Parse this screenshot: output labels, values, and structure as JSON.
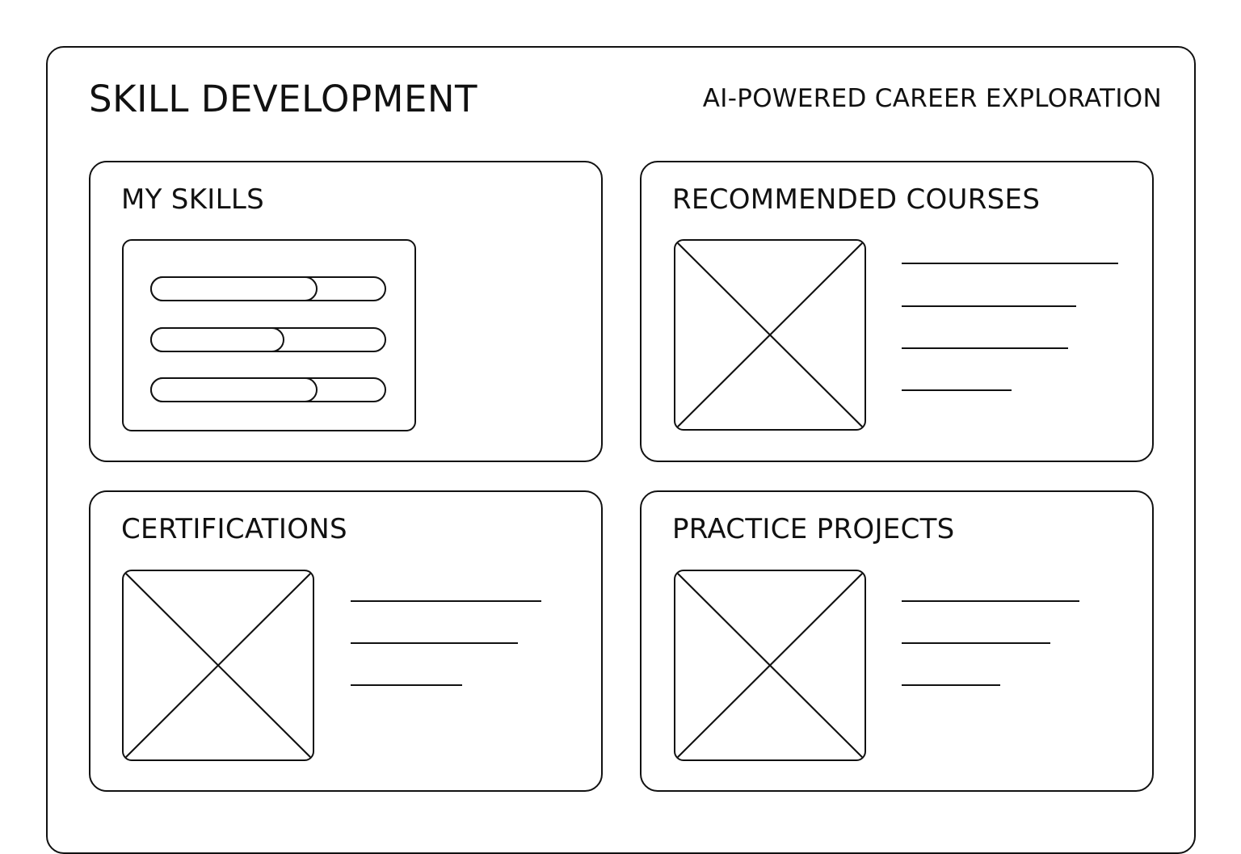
{
  "header": {
    "title": "SKILL DEVELOPMENT",
    "subtitle": "AI-POWERED CAREER EXPLORATION"
  },
  "cards": {
    "my_skills": {
      "title": "MY SKILLS",
      "skills": [
        {
          "level": 0.71
        },
        {
          "level": 0.57
        },
        {
          "level": 0.71
        }
      ]
    },
    "recommended_courses": {
      "title": "RECOMMENDED COURSES",
      "image_icon": "image-placeholder-icon"
    },
    "certifications": {
      "title": "CERTIFICATIONS",
      "image_icon": "image-placeholder-icon"
    },
    "practice_projects": {
      "title": "PRACTICE PROJECTS",
      "image_icon": "image-placeholder-icon"
    }
  }
}
